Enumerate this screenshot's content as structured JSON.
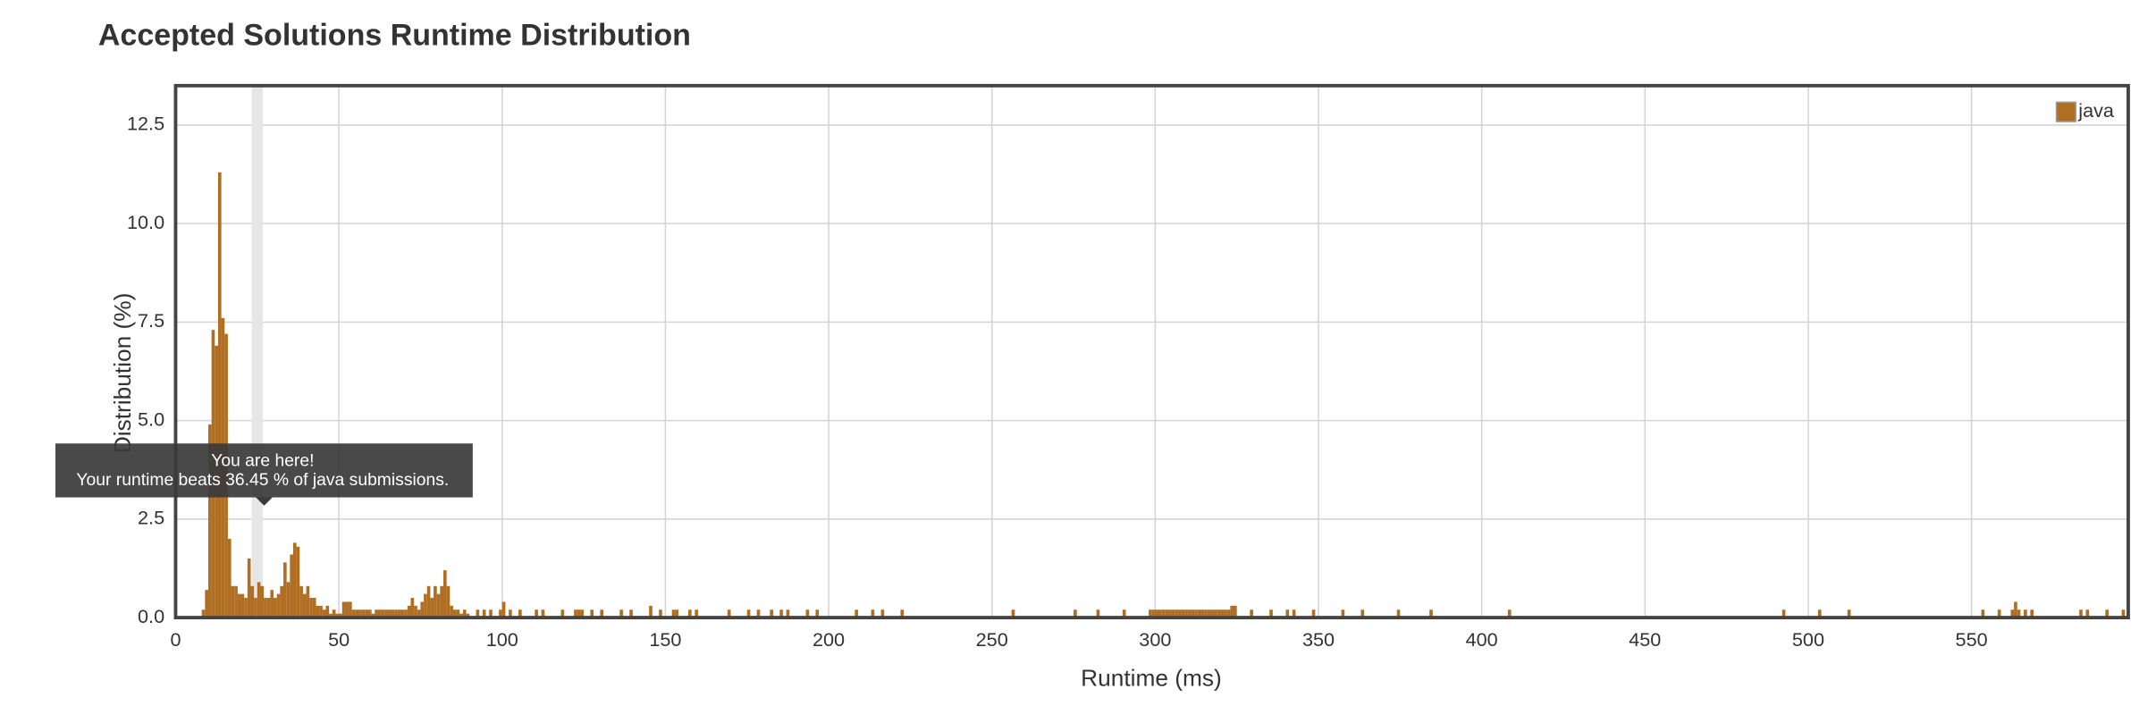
{
  "chart_data": {
    "type": "bar",
    "title": "Accepted Solutions Runtime Distribution",
    "x_label": "Runtime (ms)",
    "y_label": "Distribution (%)",
    "xlim": [
      0,
      598
    ],
    "ylim": [
      0,
      13.5
    ],
    "xticks": [
      0,
      50,
      100,
      150,
      200,
      250,
      300,
      350,
      400,
      450,
      500,
      550
    ],
    "yticks": [
      {
        "value": 0,
        "label": "0.0"
      },
      2.5,
      {
        "value": 5,
        "label": "5.0"
      },
      7.5,
      {
        "value": 10,
        "label": "10.0"
      },
      12.5
    ],
    "grid": true,
    "legend": "top-right",
    "bar_width": 1,
    "highlight_x": 25,
    "annotations": [
      "You are here!",
      "Your runtime beats 36.45 % of java submissions."
    ],
    "series": [
      {
        "name": "java",
        "color": "#b06e23",
        "x": [
          8,
          9,
          10,
          11,
          12,
          13,
          14,
          15,
          16,
          17,
          18,
          19,
          20,
          21,
          22,
          23,
          24,
          25,
          26,
          27,
          28,
          29,
          30,
          31,
          32,
          33,
          34,
          35,
          36,
          37,
          38,
          39,
          40,
          41,
          42,
          43,
          44,
          45,
          46,
          47,
          48,
          49,
          50,
          51,
          52,
          53,
          54,
          55,
          56,
          57,
          58,
          59,
          60,
          61,
          62,
          63,
          64,
          65,
          66,
          67,
          68,
          69,
          70,
          71,
          72,
          73,
          74,
          75,
          76,
          77,
          78,
          79,
          80,
          81,
          82,
          83,
          84,
          85,
          86,
          87,
          88,
          89,
          92,
          94,
          96,
          99,
          100,
          102,
          105,
          110,
          112,
          118,
          122,
          123,
          124,
          127,
          130,
          136,
          139,
          145,
          148,
          152,
          153,
          157,
          159,
          169,
          175,
          178,
          182,
          185,
          187,
          193,
          196,
          208,
          213,
          216,
          222,
          256,
          275,
          282,
          290,
          298,
          299,
          300,
          301,
          302,
          303,
          304,
          305,
          306,
          307,
          308,
          309,
          310,
          311,
          312,
          313,
          314,
          315,
          316,
          317,
          318,
          319,
          320,
          321,
          322,
          323,
          324,
          329,
          335,
          340,
          342,
          348,
          357,
          363,
          374,
          384,
          408,
          492,
          503,
          512,
          553,
          558,
          562,
          563,
          564,
          566,
          568,
          583,
          585,
          591,
          596
        ],
        "values": [
          0.2,
          0.7,
          4.9,
          7.3,
          6.9,
          11.3,
          7.6,
          7.2,
          2.0,
          0.8,
          0.8,
          0.6,
          0.6,
          0.5,
          1.5,
          0.8,
          0.5,
          0.9,
          0.8,
          0.5,
          0.5,
          0.7,
          0.5,
          0.6,
          0.8,
          1.4,
          0.9,
          1.6,
          1.9,
          1.8,
          0.8,
          0.6,
          0.8,
          0.5,
          0.5,
          0.3,
          0.3,
          0.2,
          0.3,
          0.1,
          0.2,
          0.1,
          0.1,
          0.4,
          0.4,
          0.4,
          0.2,
          0.2,
          0.2,
          0.2,
          0.2,
          0.2,
          0.1,
          0.2,
          0.2,
          0.2,
          0.2,
          0.2,
          0.2,
          0.2,
          0.2,
          0.2,
          0.2,
          0.3,
          0.5,
          0.3,
          0.2,
          0.4,
          0.6,
          0.8,
          0.5,
          0.8,
          0.6,
          0.8,
          1.2,
          0.8,
          0.3,
          0.2,
          0.2,
          0.1,
          0.2,
          0.1,
          0.2,
          0.2,
          0.2,
          0.2,
          0.4,
          0.2,
          0.2,
          0.2,
          0.2,
          0.2,
          0.2,
          0.2,
          0.2,
          0.2,
          0.2,
          0.2,
          0.2,
          0.3,
          0.2,
          0.2,
          0.2,
          0.2,
          0.2,
          0.2,
          0.2,
          0.2,
          0.2,
          0.2,
          0.2,
          0.2,
          0.2,
          0.2,
          0.2,
          0.2,
          0.2,
          0.2,
          0.2,
          0.2,
          0.2,
          0.2,
          0.2,
          0.2,
          0.2,
          0.2,
          0.2,
          0.2,
          0.2,
          0.2,
          0.2,
          0.2,
          0.2,
          0.2,
          0.2,
          0.2,
          0.2,
          0.2,
          0.2,
          0.2,
          0.2,
          0.2,
          0.2,
          0.2,
          0.2,
          0.2,
          0.3,
          0.3,
          0.2,
          0.2,
          0.2,
          0.2,
          0.2,
          0.2,
          0.2,
          0.2,
          0.2,
          0.2,
          0.2,
          0.2,
          0.2,
          0.2,
          0.2,
          0.2,
          0.4,
          0.2,
          0.2,
          0.2,
          0.2,
          0.2,
          0.2,
          0.2
        ]
      }
    ]
  }
}
